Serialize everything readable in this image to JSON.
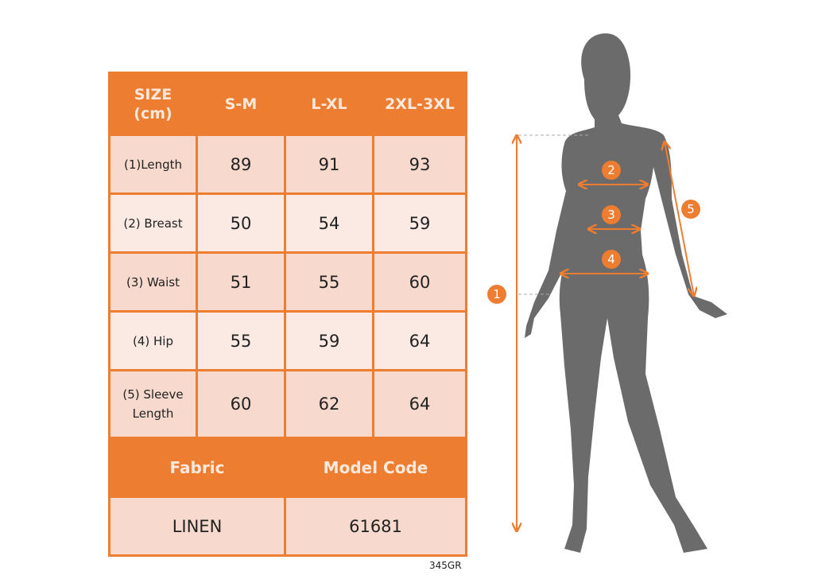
{
  "table": {
    "header": {
      "size_label": "SIZE\n(cm)",
      "sizes": [
        "S-M",
        "L-XL",
        "2XL-3XL"
      ]
    },
    "rows": [
      {
        "label": "(1)Length",
        "values": [
          "89",
          "91",
          "93"
        ]
      },
      {
        "label": "(2) Breast",
        "values": [
          "50",
          "54",
          "59"
        ]
      },
      {
        "label": "(3) Waist",
        "values": [
          "51",
          "55",
          "60"
        ]
      },
      {
        "label": "(4) Hip",
        "values": [
          "55",
          "59",
          "64"
        ]
      },
      {
        "label": "(5) Sleeve Length",
        "values": [
          "60",
          "62",
          "64"
        ]
      }
    ],
    "footer_headers": [
      "Fabric",
      "Model Code"
    ],
    "footer_values": [
      "LINEN",
      "61681"
    ]
  },
  "product_code": "345GR",
  "figure": {
    "markers": [
      "1",
      "2",
      "3",
      "4",
      "5"
    ],
    "colors": {
      "accent": "#ed7d31",
      "silhouette": "#6b6b6b"
    }
  }
}
